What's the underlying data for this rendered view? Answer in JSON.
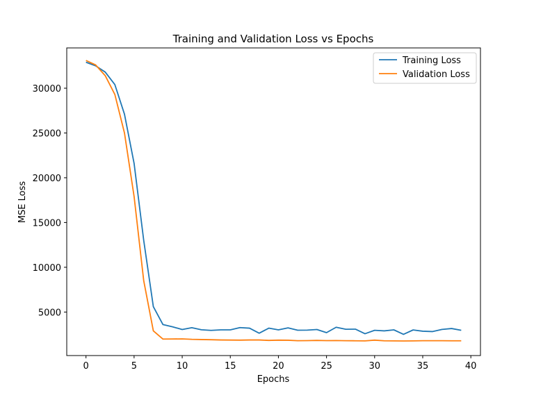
{
  "chart_data": {
    "type": "line",
    "title": "Training and Validation Loss vs Epochs",
    "xlabel": "Epochs",
    "ylabel": "MSE Loss",
    "xlim": [
      -2,
      41
    ],
    "ylim": [
      140,
      34500
    ],
    "xticks": [
      0,
      5,
      10,
      15,
      20,
      25,
      30,
      35,
      40
    ],
    "yticks": [
      5000,
      10000,
      15000,
      20000,
      25000,
      30000
    ],
    "grid": false,
    "legend_position": "top-right",
    "x": [
      0,
      1,
      2,
      3,
      4,
      5,
      6,
      7,
      8,
      9,
      10,
      11,
      12,
      13,
      14,
      15,
      16,
      17,
      18,
      19,
      20,
      21,
      22,
      23,
      24,
      25,
      26,
      27,
      28,
      29,
      30,
      31,
      32,
      33,
      34,
      35,
      36,
      37,
      38,
      39
    ],
    "series": [
      {
        "name": "Training Loss",
        "color": "#1f77b4",
        "values": [
          32900,
          32500,
          31800,
          30400,
          27100,
          21600,
          13000,
          5600,
          3600,
          3350,
          3050,
          3250,
          3020,
          2950,
          3010,
          3010,
          3260,
          3200,
          2640,
          3200,
          3010,
          3230,
          2970,
          2980,
          3050,
          2700,
          3300,
          3080,
          3090,
          2580,
          2960,
          2900,
          3010,
          2510,
          3000,
          2860,
          2820,
          3060,
          3160,
          2960
        ]
      },
      {
        "name": "Validation Loss",
        "color": "#ff7f0e",
        "values": [
          33100,
          32600,
          31400,
          29300,
          25000,
          17900,
          8500,
          2900,
          1980,
          1990,
          2000,
          1950,
          1930,
          1910,
          1880,
          1870,
          1860,
          1880,
          1880,
          1830,
          1860,
          1850,
          1800,
          1810,
          1830,
          1810,
          1820,
          1800,
          1790,
          1780,
          1860,
          1790,
          1780,
          1770,
          1780,
          1800,
          1800,
          1800,
          1790,
          1790
        ]
      }
    ]
  }
}
